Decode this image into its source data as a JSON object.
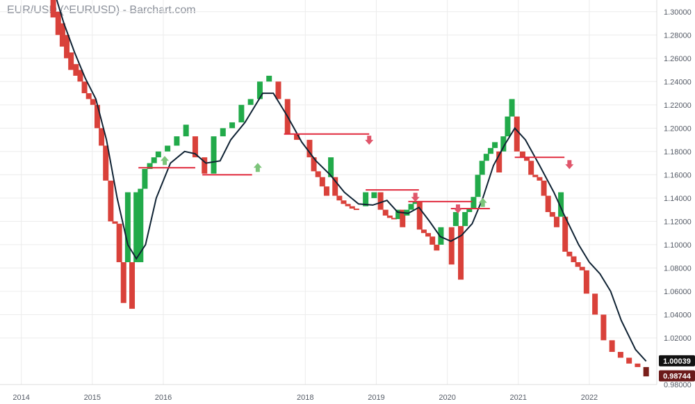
{
  "chart_data": {
    "type": "bar",
    "title": "EUR/USD (^EURUSD) - Barchart.com",
    "xlabel": "",
    "ylabel": "",
    "ylim": [
      0.98,
      1.31
    ],
    "y_ticks": [
      "1.30000",
      "1.28000",
      "1.26000",
      "1.24000",
      "1.22000",
      "1.20000",
      "1.18000",
      "1.16000",
      "1.14000",
      "1.12000",
      "1.10000",
      "1.08000",
      "1.06000",
      "1.04000",
      "1.02000",
      "0.98000"
    ],
    "x_ticks": [
      {
        "label": "2014",
        "t": 2014.0
      },
      {
        "label": "2015",
        "t": 2015.0
      },
      {
        "label": "2016",
        "t": 2016.0
      },
      {
        "label": "2018",
        "t": 2018.0
      },
      {
        "label": "2019",
        "t": 2019.0
      },
      {
        "label": "2020",
        "t": 2020.0
      },
      {
        "label": "2021",
        "t": 2021.0
      },
      {
        "label": "2022",
        "t": 2022.0
      }
    ],
    "price_badges": [
      {
        "label": "1.00039",
        "value": 1.00039,
        "color": "#111111"
      },
      {
        "label": "0.98744",
        "value": 0.98744,
        "color": "#6b1a1a"
      }
    ],
    "bricks": [
      {
        "t": 2014.45,
        "top": 1.31,
        "bottom": 1.295,
        "color": "red"
      },
      {
        "t": 2014.52,
        "top": 1.3,
        "bottom": 1.28,
        "color": "red"
      },
      {
        "t": 2014.58,
        "top": 1.29,
        "bottom": 1.27,
        "color": "red"
      },
      {
        "t": 2014.64,
        "top": 1.28,
        "bottom": 1.26,
        "color": "red"
      },
      {
        "t": 2014.7,
        "top": 1.265,
        "bottom": 1.25,
        "color": "red"
      },
      {
        "t": 2014.77,
        "top": 1.255,
        "bottom": 1.245,
        "color": "red"
      },
      {
        "t": 2014.83,
        "top": 1.25,
        "bottom": 1.24,
        "color": "red"
      },
      {
        "t": 2014.89,
        "top": 1.24,
        "bottom": 1.23,
        "color": "red"
      },
      {
        "t": 2014.95,
        "top": 1.23,
        "bottom": 1.225,
        "color": "red"
      },
      {
        "t": 2015.01,
        "top": 1.225,
        "bottom": 1.22,
        "color": "red"
      },
      {
        "t": 2015.07,
        "top": 1.22,
        "bottom": 1.2,
        "color": "red"
      },
      {
        "t": 2015.13,
        "top": 1.2,
        "bottom": 1.185,
        "color": "red"
      },
      {
        "t": 2015.19,
        "top": 1.185,
        "bottom": 1.155,
        "color": "red"
      },
      {
        "t": 2015.26,
        "top": 1.155,
        "bottom": 1.12,
        "color": "red"
      },
      {
        "t": 2015.32,
        "top": 1.12,
        "bottom": 1.118,
        "color": "red"
      },
      {
        "t": 2015.38,
        "top": 1.118,
        "bottom": 1.085,
        "color": "red"
      },
      {
        "t": 2015.44,
        "top": 1.085,
        "bottom": 1.05,
        "color": "red"
      },
      {
        "t": 2015.5,
        "top": 1.145,
        "bottom": 1.085,
        "color": "green"
      },
      {
        "t": 2015.56,
        "top": 1.085,
        "bottom": 1.045,
        "color": "red"
      },
      {
        "t": 2015.62,
        "top": 1.145,
        "bottom": 1.085,
        "color": "green"
      },
      {
        "t": 2015.68,
        "top": 1.148,
        "bottom": 1.085,
        "color": "green"
      },
      {
        "t": 2015.74,
        "top": 1.165,
        "bottom": 1.148,
        "color": "green"
      },
      {
        "t": 2015.81,
        "top": 1.17,
        "bottom": 1.165,
        "color": "green"
      },
      {
        "t": 2015.87,
        "top": 1.175,
        "bottom": 1.17,
        "color": "green"
      },
      {
        "t": 2015.93,
        "top": 1.18,
        "bottom": 1.175,
        "color": "green"
      },
      {
        "t": 2016.06,
        "top": 1.185,
        "bottom": 1.18,
        "color": "green"
      },
      {
        "t": 2016.19,
        "top": 1.193,
        "bottom": 1.185,
        "color": "green"
      },
      {
        "t": 2016.32,
        "top": 1.203,
        "bottom": 1.193,
        "color": "green"
      },
      {
        "t": 2016.45,
        "top": 1.193,
        "bottom": 1.175,
        "color": "red"
      },
      {
        "t": 2016.58,
        "top": 1.175,
        "bottom": 1.161,
        "color": "red"
      },
      {
        "t": 2016.71,
        "top": 1.193,
        "bottom": 1.161,
        "color": "green"
      },
      {
        "t": 2016.84,
        "top": 1.2,
        "bottom": 1.193,
        "color": "green"
      },
      {
        "t": 2016.97,
        "top": 1.205,
        "bottom": 1.2,
        "color": "green"
      },
      {
        "t": 2017.1,
        "top": 1.22,
        "bottom": 1.205,
        "color": "green"
      },
      {
        "t": 2017.23,
        "top": 1.225,
        "bottom": 1.22,
        "color": "green"
      },
      {
        "t": 2017.36,
        "top": 1.24,
        "bottom": 1.225,
        "color": "green"
      },
      {
        "t": 2017.49,
        "top": 1.245,
        "bottom": 1.24,
        "color": "green"
      },
      {
        "t": 2017.62,
        "top": 1.24,
        "bottom": 1.225,
        "color": "red"
      },
      {
        "t": 2017.75,
        "top": 1.225,
        "bottom": 1.195,
        "color": "red"
      },
      {
        "t": 2017.88,
        "top": 1.195,
        "bottom": 1.19,
        "color": "red"
      },
      {
        "t": 2018.06,
        "top": 1.19,
        "bottom": 1.175,
        "color": "red"
      },
      {
        "t": 2018.12,
        "top": 1.175,
        "bottom": 1.163,
        "color": "red"
      },
      {
        "t": 2018.18,
        "top": 1.163,
        "bottom": 1.158,
        "color": "red"
      },
      {
        "t": 2018.24,
        "top": 1.158,
        "bottom": 1.15,
        "color": "red"
      },
      {
        "t": 2018.3,
        "top": 1.15,
        "bottom": 1.142,
        "color": "red"
      },
      {
        "t": 2018.36,
        "top": 1.175,
        "bottom": 1.158,
        "color": "green"
      },
      {
        "t": 2018.42,
        "top": 1.158,
        "bottom": 1.142,
        "color": "red"
      },
      {
        "t": 2018.48,
        "top": 1.142,
        "bottom": 1.138,
        "color": "red"
      },
      {
        "t": 2018.54,
        "top": 1.138,
        "bottom": 1.135,
        "color": "red"
      },
      {
        "t": 2018.6,
        "top": 1.135,
        "bottom": 1.133,
        "color": "red"
      },
      {
        "t": 2018.66,
        "top": 1.133,
        "bottom": 1.131,
        "color": "red"
      },
      {
        "t": 2018.72,
        "top": 1.131,
        "bottom": 1.13,
        "color": "red"
      },
      {
        "t": 2018.85,
        "top": 1.145,
        "bottom": 1.133,
        "color": "green"
      },
      {
        "t": 2018.97,
        "top": 1.145,
        "bottom": 1.14,
        "color": "green"
      },
      {
        "t": 2019.06,
        "top": 1.145,
        "bottom": 1.13,
        "color": "red"
      },
      {
        "t": 2019.13,
        "top": 1.13,
        "bottom": 1.125,
        "color": "red"
      },
      {
        "t": 2019.19,
        "top": 1.125,
        "bottom": 1.123,
        "color": "red"
      },
      {
        "t": 2019.25,
        "top": 1.123,
        "bottom": 1.122,
        "color": "red"
      },
      {
        "t": 2019.31,
        "top": 1.13,
        "bottom": 1.122,
        "color": "green"
      },
      {
        "t": 2019.37,
        "top": 1.13,
        "bottom": 1.115,
        "color": "red"
      },
      {
        "t": 2019.43,
        "top": 1.13,
        "bottom": 1.125,
        "color": "green"
      },
      {
        "t": 2019.49,
        "top": 1.135,
        "bottom": 1.13,
        "color": "green"
      },
      {
        "t": 2019.55,
        "top": 1.137,
        "bottom": 1.135,
        "color": "green"
      },
      {
        "t": 2019.61,
        "top": 1.137,
        "bottom": 1.113,
        "color": "red"
      },
      {
        "t": 2019.67,
        "top": 1.113,
        "bottom": 1.11,
        "color": "red"
      },
      {
        "t": 2019.73,
        "top": 1.11,
        "bottom": 1.107,
        "color": "red"
      },
      {
        "t": 2019.79,
        "top": 1.107,
        "bottom": 1.1,
        "color": "red"
      },
      {
        "t": 2019.85,
        "top": 1.1,
        "bottom": 1.095,
        "color": "red"
      },
      {
        "t": 2019.91,
        "top": 1.115,
        "bottom": 1.1,
        "color": "green"
      },
      {
        "t": 2020.06,
        "top": 1.115,
        "bottom": 1.083,
        "color": "red"
      },
      {
        "t": 2020.12,
        "top": 1.128,
        "bottom": 1.116,
        "color": "green"
      },
      {
        "t": 2020.19,
        "top": 1.116,
        "bottom": 1.07,
        "color": "red"
      },
      {
        "t": 2020.25,
        "top": 1.128,
        "bottom": 1.116,
        "color": "green"
      },
      {
        "t": 2020.31,
        "top": 1.131,
        "bottom": 1.128,
        "color": "green"
      },
      {
        "t": 2020.37,
        "top": 1.141,
        "bottom": 1.131,
        "color": "green"
      },
      {
        "t": 2020.43,
        "top": 1.16,
        "bottom": 1.141,
        "color": "green"
      },
      {
        "t": 2020.49,
        "top": 1.172,
        "bottom": 1.16,
        "color": "green"
      },
      {
        "t": 2020.55,
        "top": 1.178,
        "bottom": 1.172,
        "color": "green"
      },
      {
        "t": 2020.61,
        "top": 1.183,
        "bottom": 1.178,
        "color": "green"
      },
      {
        "t": 2020.67,
        "top": 1.188,
        "bottom": 1.183,
        "color": "green"
      },
      {
        "t": 2020.73,
        "top": 1.18,
        "bottom": 1.162,
        "color": "red"
      },
      {
        "t": 2020.79,
        "top": 1.193,
        "bottom": 1.18,
        "color": "green"
      },
      {
        "t": 2020.85,
        "top": 1.21,
        "bottom": 1.193,
        "color": "green"
      },
      {
        "t": 2020.91,
        "top": 1.225,
        "bottom": 1.21,
        "color": "green"
      },
      {
        "t": 2020.98,
        "top": 1.21,
        "bottom": 1.18,
        "color": "red"
      },
      {
        "t": 2021.06,
        "top": 1.18,
        "bottom": 1.175,
        "color": "red"
      },
      {
        "t": 2021.12,
        "top": 1.175,
        "bottom": 1.172,
        "color": "red"
      },
      {
        "t": 2021.18,
        "top": 1.172,
        "bottom": 1.16,
        "color": "red"
      },
      {
        "t": 2021.24,
        "top": 1.16,
        "bottom": 1.158,
        "color": "red"
      },
      {
        "t": 2021.3,
        "top": 1.158,
        "bottom": 1.155,
        "color": "red"
      },
      {
        "t": 2021.36,
        "top": 1.155,
        "bottom": 1.142,
        "color": "red"
      },
      {
        "t": 2021.42,
        "top": 1.142,
        "bottom": 1.128,
        "color": "red"
      },
      {
        "t": 2021.48,
        "top": 1.128,
        "bottom": 1.124,
        "color": "red"
      },
      {
        "t": 2021.54,
        "top": 1.124,
        "bottom": 1.115,
        "color": "red"
      },
      {
        "t": 2021.6,
        "top": 1.145,
        "bottom": 1.124,
        "color": "green"
      },
      {
        "t": 2021.66,
        "top": 1.124,
        "bottom": 1.094,
        "color": "red"
      },
      {
        "t": 2021.72,
        "top": 1.094,
        "bottom": 1.09,
        "color": "red"
      },
      {
        "t": 2021.78,
        "top": 1.09,
        "bottom": 1.085,
        "color": "red"
      },
      {
        "t": 2021.84,
        "top": 1.085,
        "bottom": 1.081,
        "color": "red"
      },
      {
        "t": 2021.9,
        "top": 1.081,
        "bottom": 1.078,
        "color": "red"
      },
      {
        "t": 2021.96,
        "top": 1.078,
        "bottom": 1.058,
        "color": "red"
      },
      {
        "t": 2022.08,
        "top": 1.058,
        "bottom": 1.04,
        "color": "red"
      },
      {
        "t": 2022.2,
        "top": 1.04,
        "bottom": 1.018,
        "color": "red"
      },
      {
        "t": 2022.32,
        "top": 1.018,
        "bottom": 1.008,
        "color": "red"
      },
      {
        "t": 2022.44,
        "top": 1.008,
        "bottom": 1.003,
        "color": "red"
      },
      {
        "t": 2022.56,
        "top": 1.003,
        "bottom": 0.998,
        "color": "red"
      },
      {
        "t": 2022.68,
        "top": 0.998,
        "bottom": 0.995,
        "color": "red"
      },
      {
        "t": 2022.8,
        "top": 0.995,
        "bottom": 0.987,
        "color": "darkred"
      }
    ],
    "moving_average": [
      [
        2014.5,
        1.31
      ],
      [
        2014.6,
        1.29
      ],
      [
        2014.75,
        1.265
      ],
      [
        2014.9,
        1.243
      ],
      [
        2015.05,
        1.225
      ],
      [
        2015.2,
        1.19
      ],
      [
        2015.35,
        1.14
      ],
      [
        2015.5,
        1.1
      ],
      [
        2015.62,
        1.088
      ],
      [
        2015.75,
        1.1
      ],
      [
        2015.9,
        1.14
      ],
      [
        2016.1,
        1.17
      ],
      [
        2016.3,
        1.18
      ],
      [
        2016.45,
        1.178
      ],
      [
        2016.6,
        1.17
      ],
      [
        2016.8,
        1.172
      ],
      [
        2016.95,
        1.19
      ],
      [
        2017.15,
        1.205
      ],
      [
        2017.4,
        1.23
      ],
      [
        2017.55,
        1.23
      ],
      [
        2017.75,
        1.21
      ],
      [
        2017.95,
        1.188
      ],
      [
        2018.15,
        1.172
      ],
      [
        2018.35,
        1.16
      ],
      [
        2018.55,
        1.145
      ],
      [
        2018.75,
        1.135
      ],
      [
        2018.95,
        1.134
      ],
      [
        2019.15,
        1.138
      ],
      [
        2019.3,
        1.128
      ],
      [
        2019.45,
        1.127
      ],
      [
        2019.6,
        1.132
      ],
      [
        2019.75,
        1.12
      ],
      [
        2019.9,
        1.107
      ],
      [
        2020.05,
        1.103
      ],
      [
        2020.2,
        1.108
      ],
      [
        2020.35,
        1.118
      ],
      [
        2020.5,
        1.14
      ],
      [
        2020.65,
        1.168
      ],
      [
        2020.8,
        1.185
      ],
      [
        2020.95,
        1.2
      ],
      [
        2021.1,
        1.19
      ],
      [
        2021.3,
        1.168
      ],
      [
        2021.5,
        1.145
      ],
      [
        2021.65,
        1.125
      ],
      [
        2021.85,
        1.1
      ],
      [
        2022.0,
        1.085
      ],
      [
        2022.15,
        1.075
      ],
      [
        2022.3,
        1.06
      ],
      [
        2022.45,
        1.035
      ],
      [
        2022.65,
        1.01
      ],
      [
        2022.8,
        1.0
      ]
    ],
    "annotations": [
      {
        "kind": "line",
        "t1": 2015.65,
        "t2": 2016.45,
        "y": 1.166,
        "color": "#e0293c"
      },
      {
        "kind": "line",
        "t1": 2016.55,
        "t2": 2017.25,
        "y": 1.16,
        "color": "#e0293c"
      },
      {
        "kind": "line",
        "t1": 2017.7,
        "t2": 2018.9,
        "y": 1.195,
        "color": "#e0293c"
      },
      {
        "kind": "line",
        "t1": 2018.85,
        "t2": 2019.6,
        "y": 1.147,
        "color": "#e0293c"
      },
      {
        "kind": "line",
        "t1": 2019.45,
        "t2": 2020.35,
        "y": 1.137,
        "color": "#e0293c"
      },
      {
        "kind": "line",
        "t1": 2020.05,
        "t2": 2020.6,
        "y": 1.131,
        "color": "#e0293c"
      },
      {
        "kind": "line",
        "t1": 2020.95,
        "t2": 2021.65,
        "y": 1.175,
        "color": "#e0293c"
      },
      {
        "kind": "arrow",
        "t": 2016.02,
        "y": 1.172,
        "dir": "up"
      },
      {
        "kind": "arrow",
        "t": 2017.33,
        "y": 1.166,
        "dir": "up"
      },
      {
        "kind": "arrow",
        "t": 2018.9,
        "y": 1.19,
        "dir": "down"
      },
      {
        "kind": "arrow",
        "t": 2019.55,
        "y": 1.141,
        "dir": "down"
      },
      {
        "kind": "arrow",
        "t": 2020.15,
        "y": 1.131,
        "dir": "down"
      },
      {
        "kind": "arrow",
        "t": 2020.5,
        "y": 1.136,
        "dir": "up"
      },
      {
        "kind": "arrow",
        "t": 2021.72,
        "y": 1.169,
        "dir": "down"
      }
    ],
    "colors": {
      "green": "#22aa4a",
      "red": "#d9413a",
      "darkred": "#7a1f1a",
      "ma": "#0f2233",
      "grid": "#ececec",
      "axis_text": "#555b66",
      "arrow_up": "#7cc47a",
      "arrow_down": "#e0566b"
    },
    "grid": true
  }
}
